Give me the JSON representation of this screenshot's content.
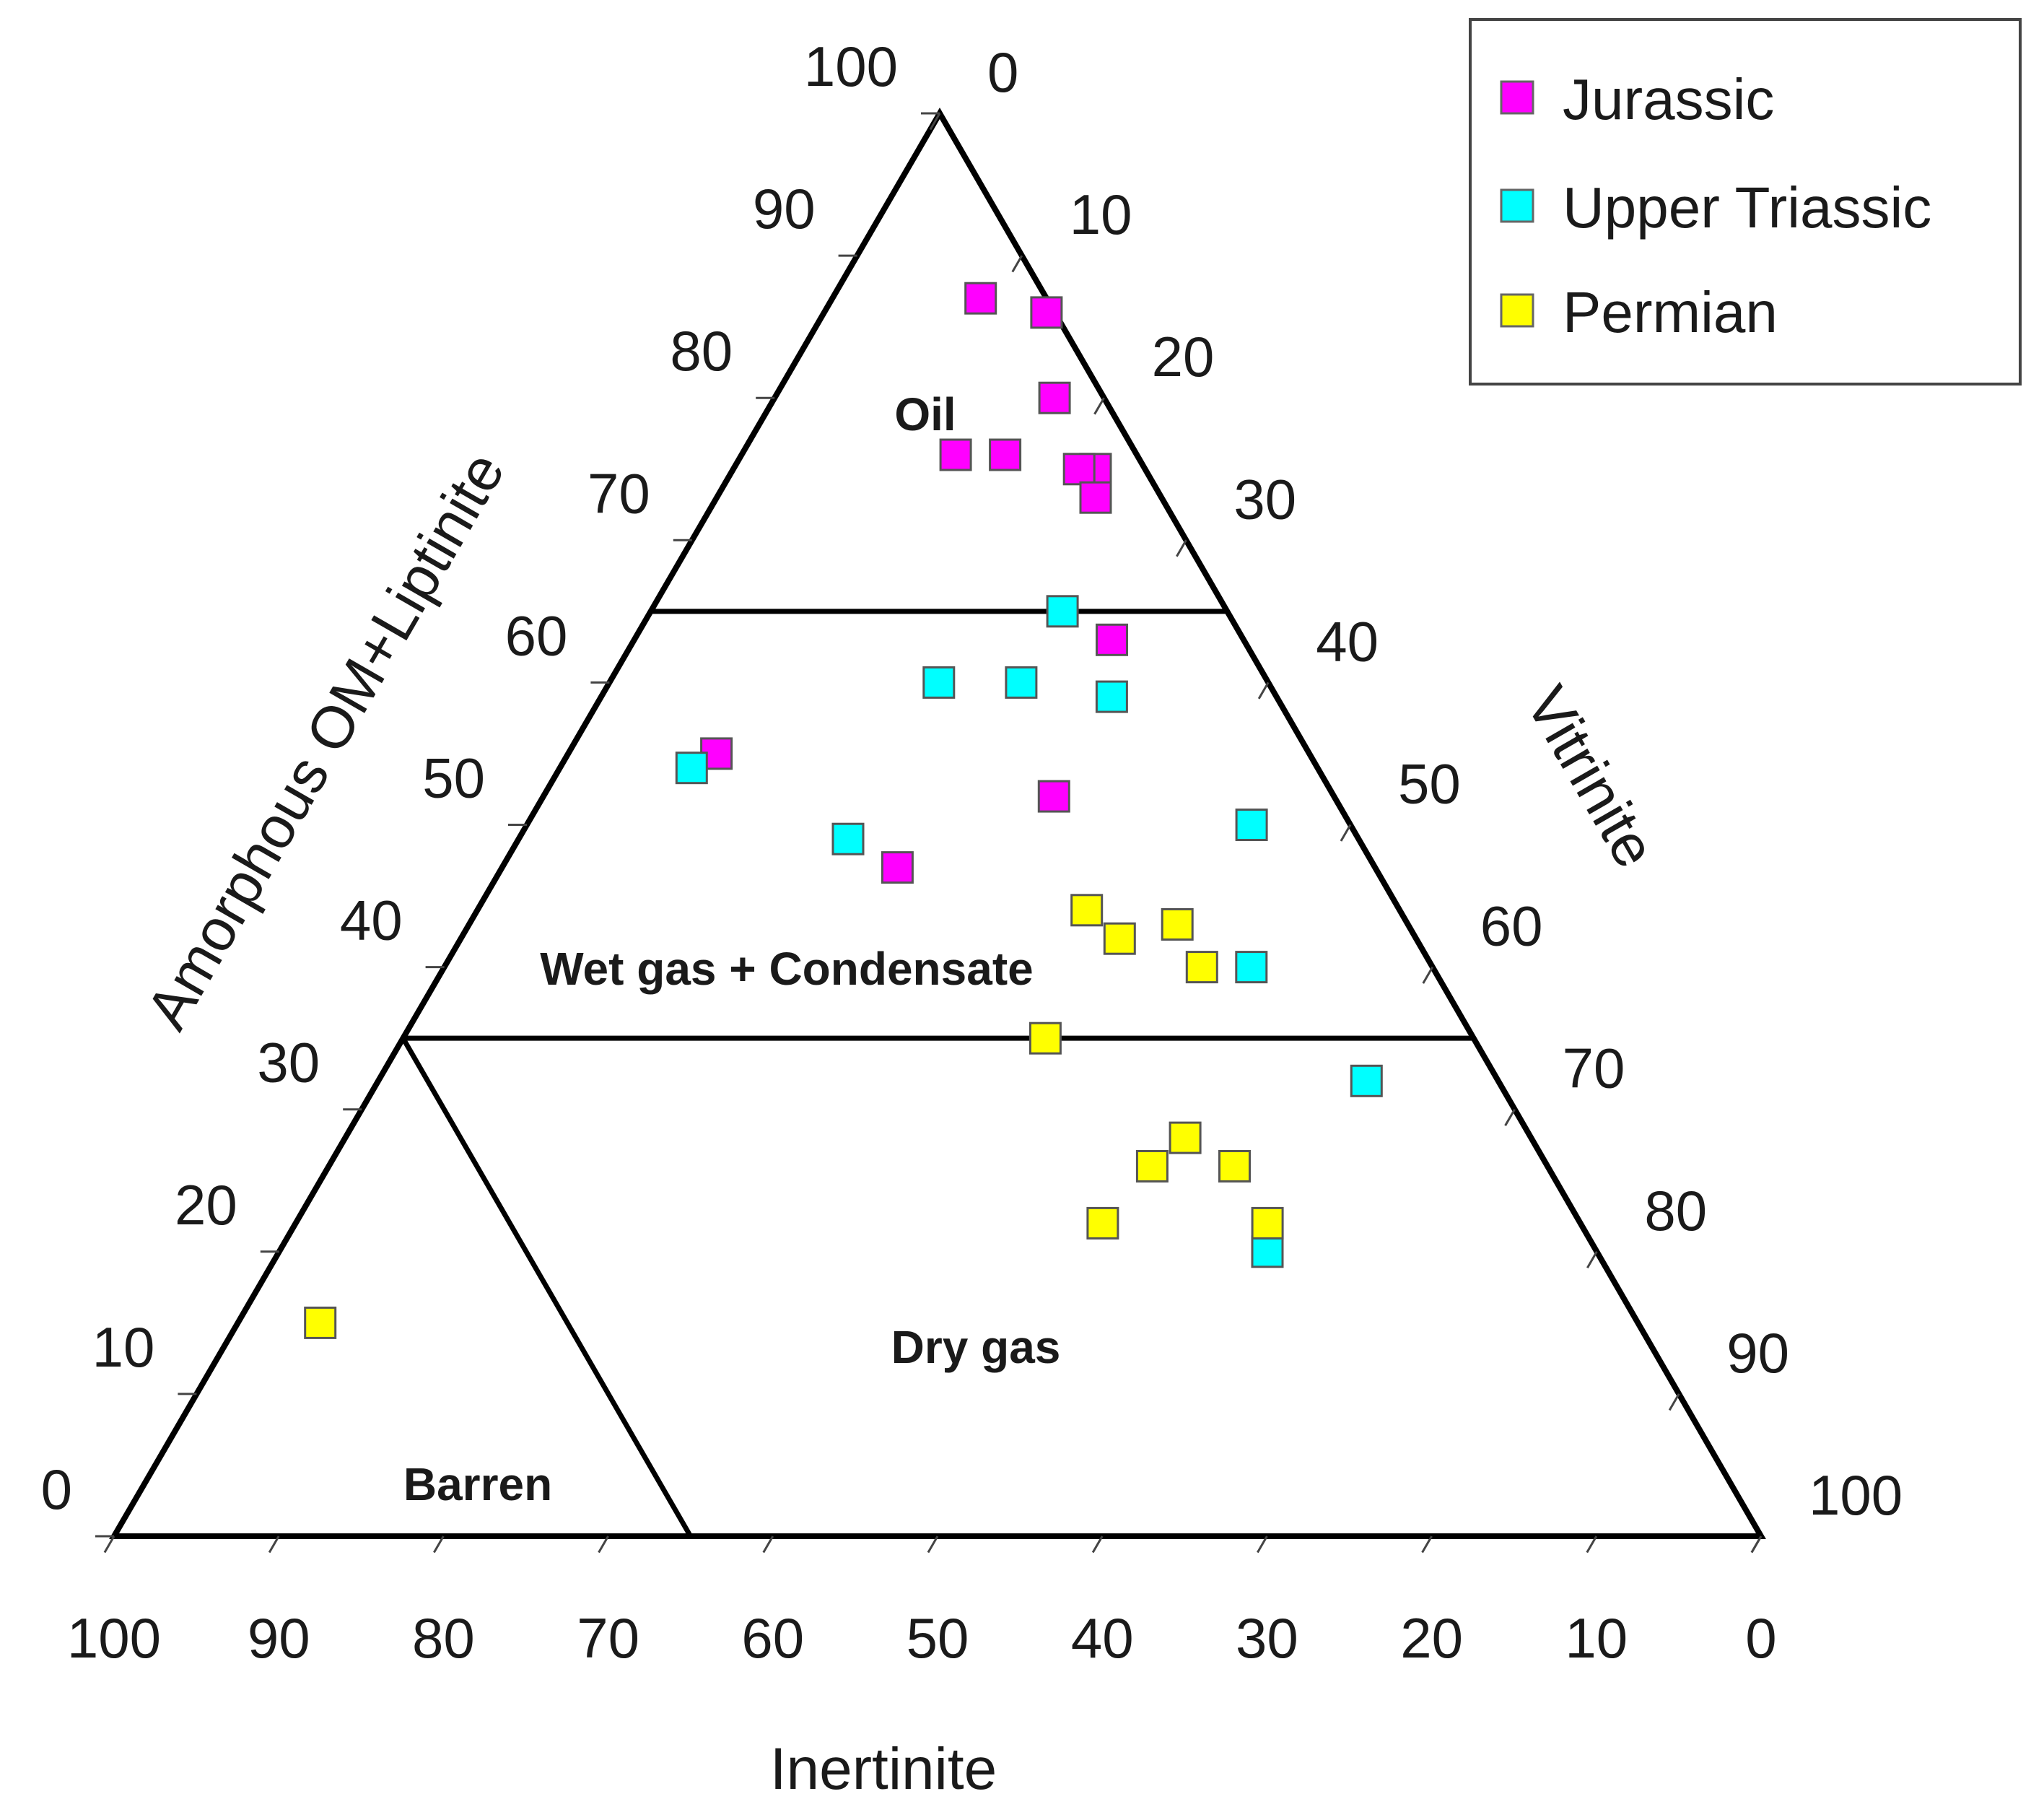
{
  "chart_data": {
    "type": "scatter",
    "subtype": "ternary",
    "title": "",
    "axes": {
      "left": {
        "title": "Amorphous OM+Liptinite",
        "component": "amorphous_liptinite",
        "ticks": [
          0,
          10,
          20,
          30,
          40,
          50,
          60,
          70,
          80,
          90,
          100
        ]
      },
      "right": {
        "title": "Vitrinite",
        "component": "vitrinite",
        "ticks": [
          0,
          10,
          20,
          30,
          40,
          50,
          60,
          70,
          80,
          90,
          100
        ]
      },
      "bottom": {
        "title": "Inertinite",
        "component": "inertinite",
        "ticks": [
          100,
          90,
          80,
          70,
          60,
          50,
          40,
          30,
          20,
          10,
          0
        ]
      }
    },
    "regions": [
      {
        "name": "Oil",
        "label": "Oil",
        "amorphous_liptinite_min": 65
      },
      {
        "name": "Wet gas + Condensate",
        "label": "Wet gas + Condensate",
        "amorphous_liptinite_min": 35,
        "amorphous_liptinite_max": 65
      },
      {
        "name": "Dry gas",
        "label": "Dry gas",
        "amorphous_liptinite_max": 35
      },
      {
        "name": "Barren",
        "label": "Barren",
        "amorphous_liptinite_max": 35,
        "inertinite_boundary_at_base": 65
      }
    ],
    "legend": {
      "position": "top-right"
    },
    "series": [
      {
        "name": "Jurassic",
        "color": "#ff00ff",
        "points": [
          {
            "amorphous_liptinite": 86,
            "vitrinite": 13.5,
            "inertinite": 0.5
          },
          {
            "amorphous_liptinite": 87,
            "vitrinite": 9,
            "inertinite": 4
          },
          {
            "amorphous_liptinite": 80,
            "vitrinite": 17,
            "inertinite": 3
          },
          {
            "amorphous_liptinite": 75,
            "vitrinite": 22,
            "inertinite": 3
          },
          {
            "amorphous_liptinite": 76,
            "vitrinite": 16,
            "inertinite": 8
          },
          {
            "amorphous_liptinite": 76,
            "vitrinite": 13,
            "inertinite": 11
          },
          {
            "amorphous_liptinite": 75,
            "vitrinite": 21,
            "inertinite": 4
          },
          {
            "amorphous_liptinite": 73,
            "vitrinite": 23,
            "inertinite": 4
          },
          {
            "amorphous_liptinite": 63,
            "vitrinite": 29,
            "inertinite": 8
          },
          {
            "amorphous_liptinite": 55,
            "vitrinite": 9,
            "inertinite": 36
          },
          {
            "amorphous_liptinite": 52,
            "vitrinite": 31,
            "inertinite": 17
          },
          {
            "amorphous_liptinite": 47,
            "vitrinite": 24,
            "inertinite": 29
          }
        ]
      },
      {
        "name": "Upper Triassic",
        "color": "#00ffff",
        "points": [
          {
            "amorphous_liptinite": 65,
            "vitrinite": 25,
            "inertinite": 10
          },
          {
            "amorphous_liptinite": 60,
            "vitrinite": 20,
            "inertinite": 20
          },
          {
            "amorphous_liptinite": 60,
            "vitrinite": 25,
            "inertinite": 15
          },
          {
            "amorphous_liptinite": 59,
            "vitrinite": 31,
            "inertinite": 10
          },
          {
            "amorphous_liptinite": 54,
            "vitrinite": 8,
            "inertinite": 38
          },
          {
            "amorphous_liptinite": 49,
            "vitrinite": 20,
            "inertinite": 31
          },
          {
            "amorphous_liptinite": 50,
            "vitrinite": 44,
            "inertinite": 6
          },
          {
            "amorphous_liptinite": 40,
            "vitrinite": 49,
            "inertinite": 11
          },
          {
            "amorphous_liptinite": 32,
            "vitrinite": 60,
            "inertinite": 8
          },
          {
            "amorphous_liptinite": 20,
            "vitrinite": 60,
            "inertinite": 20
          }
        ]
      },
      {
        "name": "Permian",
        "color": "#ffff00",
        "points": [
          {
            "amorphous_liptinite": 44,
            "vitrinite": 37,
            "inertinite": 19
          },
          {
            "amorphous_liptinite": 42,
            "vitrinite": 40,
            "inertinite": 18
          },
          {
            "amorphous_liptinite": 43,
            "vitrinite": 43,
            "inertinite": 14
          },
          {
            "amorphous_liptinite": 40,
            "vitrinite": 46,
            "inertinite": 14
          },
          {
            "amorphous_liptinite": 35,
            "vitrinite": 39,
            "inertinite": 26
          },
          {
            "amorphous_liptinite": 28,
            "vitrinite": 51,
            "inertinite": 21
          },
          {
            "amorphous_liptinite": 26,
            "vitrinite": 50,
            "inertinite": 24
          },
          {
            "amorphous_liptinite": 26,
            "vitrinite": 55,
            "inertinite": 19
          },
          {
            "amorphous_liptinite": 22,
            "vitrinite": 49,
            "inertinite": 29
          },
          {
            "amorphous_liptinite": 22,
            "vitrinite": 59,
            "inertinite": 19
          },
          {
            "amorphous_liptinite": 15,
            "vitrinite": 5,
            "inertinite": 80
          }
        ]
      }
    ]
  }
}
